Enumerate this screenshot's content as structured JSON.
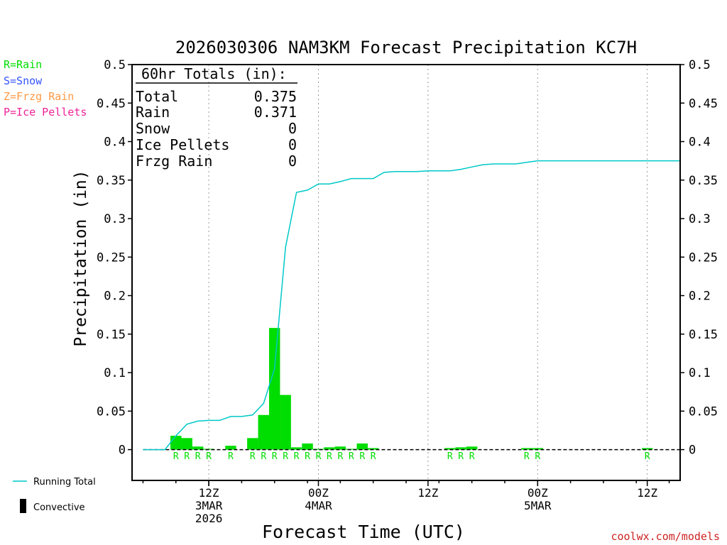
{
  "chart_data": {
    "type": "bar",
    "title": "2026030306 NAM3KM Forecast Precipitation KC7H",
    "xlabel": "Forecast Time (UTC)",
    "ylabel": "Precipitation (in)",
    "ylim": [
      -0.04,
      0.5
    ],
    "yticks": [
      "0.5",
      "0.45",
      "0.4",
      "0.35",
      "0.3",
      "0.25",
      "0.2",
      "0.15",
      "0.1",
      "0.05",
      "0"
    ],
    "x_range_hours": [
      -1,
      49
    ],
    "x_ticks": [
      {
        "hour": 6,
        "lines": [
          "12Z",
          "3MAR",
          "2026"
        ]
      },
      {
        "hour": 16,
        "lines": [
          "00Z",
          "4MAR"
        ]
      },
      {
        "hour": 26,
        "lines": [
          "12Z"
        ]
      },
      {
        "hour": 36,
        "lines": [
          "00Z",
          "5MAR"
        ]
      },
      {
        "hour": 46,
        "lines": [
          "12Z"
        ]
      }
    ],
    "legend_precip_types": [
      {
        "label": "R=Rain",
        "color": "#00dd00"
      },
      {
        "label": "S=Snow",
        "color": "#3355ff"
      },
      {
        "label": "Z=Frzg Rain",
        "color": "#ff9944"
      },
      {
        "label": "P=Ice Pellets",
        "color": "#ee2299"
      }
    ],
    "legend_lines": {
      "running_total": "Running Total",
      "convective": "Convective",
      "position": "bottom-left"
    },
    "totals_box": {
      "heading": "60hr Totals (in):",
      "rows": [
        {
          "label": "Total",
          "value": "0.375"
        },
        {
          "label": "Rain",
          "value": "0.371"
        },
        {
          "label": "Snow",
          "value": "0"
        },
        {
          "label": "Ice Pellets",
          "value": "0"
        },
        {
          "label": "Frzg Rain",
          "value": "0"
        }
      ]
    },
    "hourly_precip": {
      "hours": [
        3,
        4,
        5,
        6,
        8,
        10,
        11,
        12,
        13,
        14,
        15,
        16,
        17,
        18,
        19,
        20,
        21,
        28,
        29,
        30,
        35,
        36,
        46
      ],
      "values": [
        0.018,
        0.015,
        0.004,
        0.001,
        0.005,
        0.015,
        0.045,
        0.158,
        0.071,
        0.003,
        0.008,
        0.001,
        0.003,
        0.004,
        0.001,
        0.008,
        0.002,
        0.002,
        0.003,
        0.004,
        0.002,
        0.002,
        0.002
      ],
      "type_labels": [
        "R",
        "R",
        "R",
        "R",
        "R",
        "R",
        "R",
        "R",
        "R",
        "R",
        "R",
        "R",
        "R",
        "R",
        "R",
        "R",
        "R",
        "R",
        "R",
        "R",
        "R",
        "R",
        "R"
      ]
    },
    "running_total": {
      "name": "Running Total",
      "hours": [
        0,
        1,
        2,
        3,
        4,
        5,
        6,
        7,
        8,
        9,
        10,
        11,
        12,
        13,
        14,
        15,
        16,
        17,
        18,
        19,
        20,
        21,
        22,
        23,
        24,
        25,
        26,
        27,
        28,
        29,
        30,
        31,
        32,
        33,
        34,
        35,
        36,
        37,
        38,
        39,
        40,
        41,
        42,
        43,
        44,
        45,
        46,
        47,
        48,
        49
      ],
      "values": [
        0,
        0,
        0,
        0.018,
        0.033,
        0.037,
        0.038,
        0.038,
        0.043,
        0.043,
        0.045,
        0.06,
        0.105,
        0.263,
        0.334,
        0.337,
        0.345,
        0.345,
        0.348,
        0.352,
        0.352,
        0.352,
        0.36,
        0.361,
        0.361,
        0.361,
        0.362,
        0.362,
        0.362,
        0.364,
        0.367,
        0.37,
        0.371,
        0.371,
        0.371,
        0.373,
        0.375,
        0.375,
        0.375,
        0.375,
        0.375,
        0.375,
        0.375,
        0.375,
        0.375,
        0.375,
        0.375,
        0.375,
        0.375,
        0.375
      ],
      "color": "#00c8c8"
    },
    "colors": {
      "bar": "#00dd00",
      "running_total": "#00c8c8",
      "axis": "#000000"
    }
  },
  "footer": {
    "credit": "coolwx.com/models",
    "credit_color": "#cc2222"
  }
}
